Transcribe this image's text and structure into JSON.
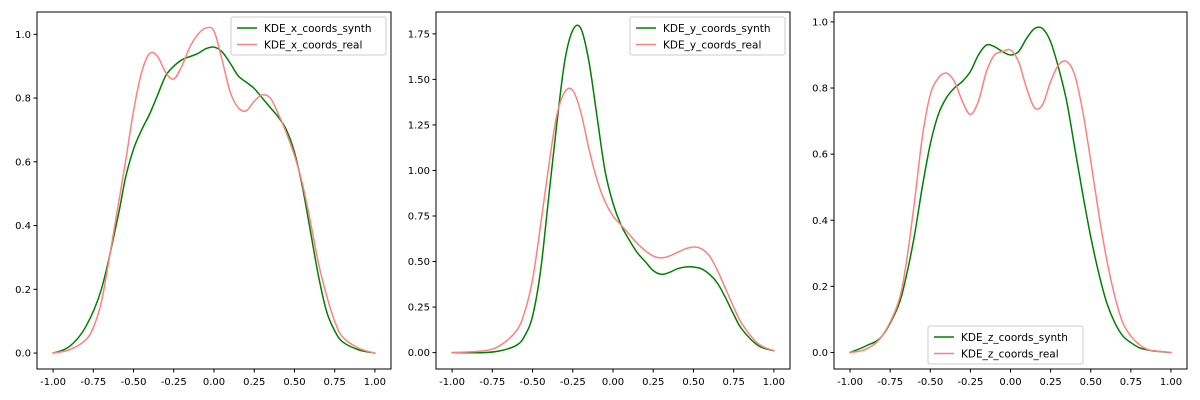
{
  "chart_data": [
    {
      "type": "line",
      "legend": "upper right",
      "grid": false,
      "xlim": [
        -1.1,
        1.1
      ],
      "ylim": [
        -0.05,
        1.07
      ],
      "xticks": [
        -1.0,
        -0.75,
        -0.5,
        -0.25,
        0.0,
        0.25,
        0.5,
        0.75,
        1.0
      ],
      "xtick_labels": [
        "-1.00",
        "-0.75",
        "-0.50",
        "-0.25",
        "0.00",
        "0.25",
        "0.50",
        "0.75",
        "1.00"
      ],
      "yticks": [
        0.0,
        0.2,
        0.4,
        0.6,
        0.8,
        1.0
      ],
      "ytick_labels": [
        "0.0",
        "0.2",
        "0.4",
        "0.6",
        "0.8",
        "1.0"
      ],
      "series": [
        {
          "name": "KDE_x_coords_synth",
          "color": "#008000",
          "x": [
            -1.0,
            -0.9,
            -0.8,
            -0.7,
            -0.6,
            -0.55,
            -0.5,
            -0.45,
            -0.4,
            -0.35,
            -0.3,
            -0.25,
            -0.2,
            -0.15,
            -0.1,
            -0.05,
            0.0,
            0.05,
            0.1,
            0.15,
            0.2,
            0.25,
            0.3,
            0.35,
            0.4,
            0.45,
            0.5,
            0.55,
            0.6,
            0.65,
            0.7,
            0.75,
            0.8,
            0.9,
            1.0
          ],
          "y": [
            0.0,
            0.02,
            0.08,
            0.2,
            0.42,
            0.55,
            0.64,
            0.7,
            0.75,
            0.81,
            0.87,
            0.9,
            0.92,
            0.93,
            0.94,
            0.955,
            0.96,
            0.945,
            0.91,
            0.87,
            0.85,
            0.83,
            0.8,
            0.77,
            0.74,
            0.7,
            0.63,
            0.52,
            0.38,
            0.24,
            0.13,
            0.07,
            0.035,
            0.01,
            0.0
          ]
        },
        {
          "name": "KDE_x_coords_real",
          "color": "#ff8080",
          "x": [
            -1.0,
            -0.9,
            -0.8,
            -0.75,
            -0.7,
            -0.65,
            -0.6,
            -0.55,
            -0.5,
            -0.45,
            -0.4,
            -0.35,
            -0.3,
            -0.25,
            -0.2,
            -0.15,
            -0.1,
            -0.05,
            0.0,
            0.05,
            0.1,
            0.15,
            0.2,
            0.25,
            0.3,
            0.35,
            0.4,
            0.45,
            0.5,
            0.55,
            0.6,
            0.65,
            0.7,
            0.75,
            0.8,
            0.9,
            1.0
          ],
          "y": [
            0.0,
            0.01,
            0.04,
            0.08,
            0.16,
            0.3,
            0.45,
            0.6,
            0.76,
            0.88,
            0.94,
            0.93,
            0.88,
            0.86,
            0.9,
            0.96,
            1.0,
            1.02,
            1.01,
            0.92,
            0.82,
            0.77,
            0.76,
            0.79,
            0.81,
            0.8,
            0.75,
            0.69,
            0.62,
            0.53,
            0.41,
            0.28,
            0.18,
            0.1,
            0.05,
            0.015,
            0.0
          ]
        }
      ]
    },
    {
      "type": "line",
      "legend": "upper right",
      "grid": false,
      "xlim": [
        -1.1,
        1.1
      ],
      "ylim": [
        -0.09,
        1.87
      ],
      "xticks": [
        -1.0,
        -0.75,
        -0.5,
        -0.25,
        0.0,
        0.25,
        0.5,
        0.75,
        1.0
      ],
      "xtick_labels": [
        "-1.00",
        "-0.75",
        "-0.50",
        "-0.25",
        "0.00",
        "0.25",
        "0.50",
        "0.75",
        "1.00"
      ],
      "yticks": [
        0.0,
        0.25,
        0.5,
        0.75,
        1.0,
        1.25,
        1.5,
        1.75
      ],
      "ytick_labels": [
        "0.00",
        "0.25",
        "0.50",
        "0.75",
        "1.00",
        "1.25",
        "1.50",
        "1.75"
      ],
      "series": [
        {
          "name": "KDE_y_coords_synth",
          "color": "#008000",
          "x": [
            -1.0,
            -0.8,
            -0.7,
            -0.6,
            -0.55,
            -0.5,
            -0.45,
            -0.4,
            -0.35,
            -0.3,
            -0.25,
            -0.2,
            -0.15,
            -0.1,
            -0.05,
            0.0,
            0.05,
            0.1,
            0.15,
            0.2,
            0.25,
            0.3,
            0.35,
            0.4,
            0.45,
            0.5,
            0.55,
            0.6,
            0.65,
            0.7,
            0.75,
            0.8,
            0.9,
            1.0
          ],
          "y": [
            0.0,
            0.0,
            0.01,
            0.04,
            0.09,
            0.2,
            0.45,
            0.85,
            1.25,
            1.6,
            1.77,
            1.78,
            1.6,
            1.3,
            1.0,
            0.82,
            0.7,
            0.62,
            0.55,
            0.5,
            0.45,
            0.43,
            0.44,
            0.46,
            0.47,
            0.47,
            0.46,
            0.43,
            0.38,
            0.3,
            0.21,
            0.13,
            0.04,
            0.01
          ]
        },
        {
          "name": "KDE_y_coords_real",
          "color": "#ff8080",
          "x": [
            -1.0,
            -0.8,
            -0.7,
            -0.6,
            -0.55,
            -0.5,
            -0.45,
            -0.4,
            -0.35,
            -0.3,
            -0.25,
            -0.2,
            -0.15,
            -0.1,
            -0.05,
            0.0,
            0.05,
            0.1,
            0.15,
            0.2,
            0.25,
            0.3,
            0.35,
            0.4,
            0.45,
            0.5,
            0.55,
            0.6,
            0.65,
            0.7,
            0.75,
            0.8,
            0.9,
            1.0
          ],
          "y": [
            0.0,
            0.01,
            0.04,
            0.12,
            0.22,
            0.4,
            0.7,
            1.02,
            1.3,
            1.43,
            1.44,
            1.32,
            1.12,
            0.95,
            0.83,
            0.75,
            0.7,
            0.65,
            0.6,
            0.56,
            0.53,
            0.52,
            0.53,
            0.55,
            0.57,
            0.58,
            0.57,
            0.53,
            0.45,
            0.35,
            0.25,
            0.16,
            0.05,
            0.01
          ]
        }
      ]
    },
    {
      "type": "line",
      "legend": "lower center",
      "grid": false,
      "xlim": [
        -1.1,
        1.1
      ],
      "ylim": [
        -0.05,
        1.03
      ],
      "xticks": [
        -1.0,
        -0.75,
        -0.5,
        -0.25,
        0.0,
        0.25,
        0.5,
        0.75,
        1.0
      ],
      "xtick_labels": [
        "-1.00",
        "-0.75",
        "-0.50",
        "-0.25",
        "0.00",
        "0.25",
        "0.50",
        "0.75",
        "1.00"
      ],
      "yticks": [
        0.0,
        0.2,
        0.4,
        0.6,
        0.8,
        1.0
      ],
      "ytick_labels": [
        "0.0",
        "0.2",
        "0.4",
        "0.6",
        "0.8",
        "1.0"
      ],
      "series": [
        {
          "name": "KDE_z_coords_synth",
          "color": "#008000",
          "x": [
            -1.0,
            -0.9,
            -0.8,
            -0.7,
            -0.65,
            -0.6,
            -0.55,
            -0.5,
            -0.45,
            -0.4,
            -0.35,
            -0.3,
            -0.25,
            -0.2,
            -0.15,
            -0.1,
            -0.05,
            0.0,
            0.05,
            0.1,
            0.15,
            0.2,
            0.25,
            0.3,
            0.35,
            0.4,
            0.45,
            0.5,
            0.55,
            0.6,
            0.65,
            0.7,
            0.75,
            0.8,
            0.85,
            0.9,
            1.0
          ],
          "y": [
            0.0,
            0.02,
            0.05,
            0.14,
            0.23,
            0.35,
            0.5,
            0.63,
            0.72,
            0.77,
            0.8,
            0.82,
            0.85,
            0.9,
            0.93,
            0.925,
            0.91,
            0.9,
            0.91,
            0.95,
            0.98,
            0.98,
            0.94,
            0.86,
            0.76,
            0.62,
            0.48,
            0.35,
            0.24,
            0.15,
            0.09,
            0.05,
            0.03,
            0.015,
            0.008,
            0.004,
            0.0
          ]
        },
        {
          "name": "KDE_z_coords_real",
          "color": "#ff8080",
          "x": [
            -1.0,
            -0.9,
            -0.8,
            -0.7,
            -0.65,
            -0.6,
            -0.55,
            -0.5,
            -0.45,
            -0.4,
            -0.35,
            -0.3,
            -0.25,
            -0.2,
            -0.15,
            -0.1,
            -0.05,
            0.0,
            0.05,
            0.1,
            0.15,
            0.2,
            0.25,
            0.3,
            0.35,
            0.4,
            0.45,
            0.5,
            0.55,
            0.6,
            0.65,
            0.7,
            0.75,
            0.8,
            0.85,
            0.9,
            1.0
          ],
          "y": [
            0.0,
            0.01,
            0.05,
            0.15,
            0.27,
            0.45,
            0.65,
            0.78,
            0.83,
            0.845,
            0.82,
            0.76,
            0.72,
            0.76,
            0.85,
            0.9,
            0.91,
            0.915,
            0.88,
            0.8,
            0.74,
            0.75,
            0.82,
            0.87,
            0.88,
            0.84,
            0.73,
            0.58,
            0.42,
            0.28,
            0.17,
            0.09,
            0.05,
            0.025,
            0.01,
            0.005,
            0.0
          ]
        }
      ]
    }
  ]
}
